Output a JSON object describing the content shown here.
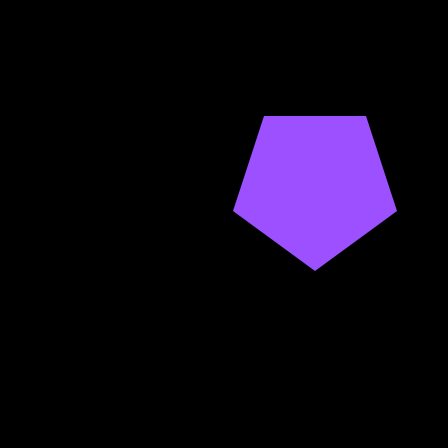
{
  "scene": {
    "background_color": "#000000",
    "shapes": [
      {
        "type": "pentagon",
        "fill_color": "#9d50ff"
      }
    ]
  }
}
